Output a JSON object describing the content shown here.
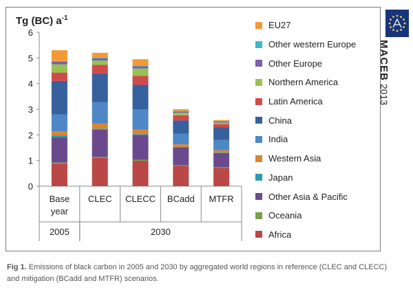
{
  "chart_data": {
    "type": "bar",
    "stacked": true,
    "ylabel": "Tg (BC) a",
    "ylabel_sup": "-1",
    "ylim": [
      0,
      6
    ],
    "yticks": [
      "0",
      "1",
      "2",
      "3",
      "4",
      "5",
      "6"
    ],
    "grid": false,
    "legend_placement": "right",
    "categories": [
      "Base year",
      "CLEC",
      "CLECC",
      "BCadd",
      "MTFR"
    ],
    "category_lines": [
      [
        "Base",
        "year"
      ],
      [
        "CLEC"
      ],
      [
        "CLECC"
      ],
      [
        "BCadd"
      ],
      [
        "MTFR"
      ]
    ],
    "groups": [
      {
        "label": "2005",
        "span": [
          0,
          0
        ]
      },
      {
        "label": "2030",
        "span": [
          1,
          4
        ]
      }
    ],
    "series": [
      {
        "name": "Africa",
        "color": "#b94846",
        "values": [
          0.88,
          1.1,
          0.99,
          0.79,
          0.71
        ]
      },
      {
        "name": "Oceania",
        "color": "#7aa04a",
        "values": [
          0.04,
          0.04,
          0.04,
          0.03,
          0.03
        ]
      },
      {
        "name": "Other Asia & Pacific",
        "color": "#6a4a8c",
        "values": [
          0.98,
          1.06,
          0.97,
          0.69,
          0.55
        ]
      },
      {
        "name": "Japan",
        "color": "#2e98ad",
        "values": [
          0.07,
          0.04,
          0.03,
          0.02,
          0.02
        ]
      },
      {
        "name": "Western Asia",
        "color": "#d98631",
        "values": [
          0.17,
          0.2,
          0.18,
          0.1,
          0.09
        ]
      },
      {
        "name": "India",
        "color": "#4f86c6",
        "values": [
          0.66,
          0.84,
          0.79,
          0.42,
          0.4
        ]
      },
      {
        "name": "China",
        "color": "#37619c",
        "values": [
          1.3,
          1.1,
          0.95,
          0.51,
          0.49
        ]
      },
      {
        "name": "Latin America",
        "color": "#cf4b4b",
        "values": [
          0.33,
          0.35,
          0.35,
          0.2,
          0.13
        ]
      },
      {
        "name": "Northern America",
        "color": "#98c152",
        "values": [
          0.32,
          0.17,
          0.29,
          0.1,
          0.06
        ]
      },
      {
        "name": "Other Europe",
        "color": "#7d5ea9",
        "values": [
          0.1,
          0.08,
          0.08,
          0.05,
          0.04
        ]
      },
      {
        "name": "Other western Europe",
        "color": "#43b5cb",
        "values": [
          0.03,
          0.03,
          0.03,
          0.02,
          0.02
        ]
      },
      {
        "name": "EU27",
        "color": "#f39a35",
        "values": [
          0.42,
          0.19,
          0.25,
          0.07,
          0.04
        ]
      }
    ]
  },
  "legend_order": [
    "EU27",
    "Other western Europe",
    "Other Europe",
    "Northern America",
    "Latin America",
    "China",
    "India",
    "Western Asia",
    "Japan",
    "Other Asia & Pacific",
    "Oceania",
    "Africa"
  ],
  "brand": {
    "name": "MACEB",
    "year": "2013",
    "emblem_icon": "eu-flag-icon"
  },
  "caption": {
    "label": "Fig 1.",
    "text": " Emissions of black carbon in 2005 and 2030 by aggregated world regions in reference (CLEC and CLECC) and mitigation (BCadd and MTFR) scenarios."
  }
}
